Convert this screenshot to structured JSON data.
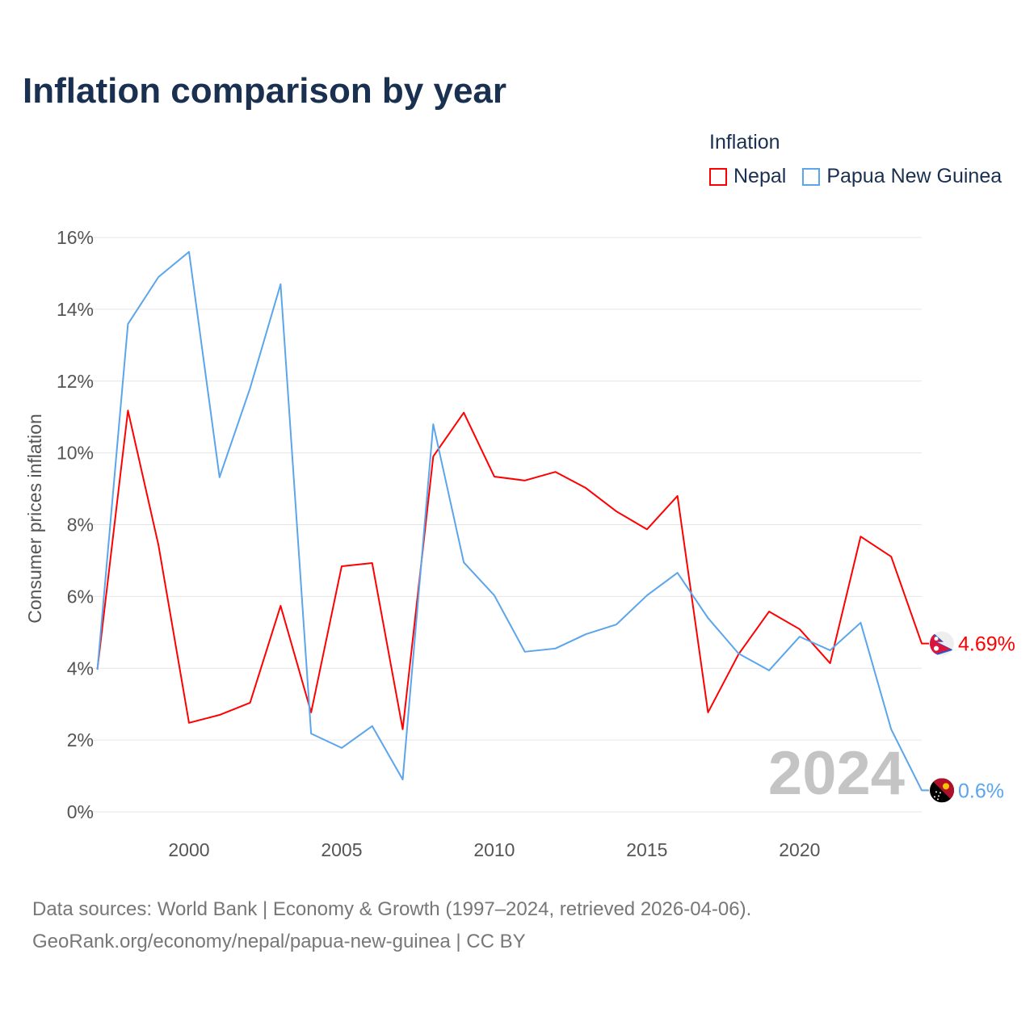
{
  "chart_data": {
    "type": "line",
    "title": "Inflation comparison by year",
    "legend_title": "Inflation",
    "legend_placement": "top-right",
    "ylabel": "Consumer prices inflation",
    "xlabel": "",
    "ylim": [
      0,
      16
    ],
    "xlim": [
      1997,
      2024
    ],
    "y_ticks": [
      0,
      2,
      4,
      6,
      8,
      10,
      12,
      14,
      16
    ],
    "y_tick_labels": [
      "0%",
      "2%",
      "4%",
      "6%",
      "8%",
      "10%",
      "12%",
      "14%",
      "16%"
    ],
    "x_ticks": [
      2000,
      2005,
      2010,
      2015,
      2020
    ],
    "x_tick_labels": [
      "2000",
      "2005",
      "2010",
      "2015",
      "2020"
    ],
    "grid": true,
    "year_watermark": "2024",
    "x": [
      1997,
      1998,
      1999,
      2000,
      2001,
      2002,
      2003,
      2004,
      2005,
      2006,
      2007,
      2008,
      2009,
      2010,
      2011,
      2012,
      2013,
      2014,
      2015,
      2016,
      2017,
      2018,
      2019,
      2020,
      2021,
      2022,
      2023,
      2024
    ],
    "series": [
      {
        "name": "Nepal",
        "color": "#ff0000",
        "end_label": "4.69%",
        "values": [
          3.98,
          11.18,
          7.43,
          2.48,
          2.7,
          3.04,
          5.74,
          2.77,
          6.84,
          6.93,
          2.3,
          9.9,
          11.12,
          9.34,
          9.23,
          9.47,
          9.02,
          8.37,
          7.87,
          8.8,
          2.77,
          4.39,
          5.58,
          5.09,
          4.14,
          7.67,
          7.11,
          4.69
        ]
      },
      {
        "name": "Papua New Guinea",
        "color": "#5aa5ec",
        "end_label": "0.6%",
        "values": [
          3.96,
          13.59,
          14.9,
          15.6,
          9.32,
          11.8,
          14.7,
          2.18,
          1.78,
          2.39,
          0.9,
          10.8,
          6.95,
          6.03,
          4.46,
          4.55,
          4.95,
          5.22,
          6.03,
          6.66,
          5.4,
          4.41,
          3.94,
          4.88,
          4.5,
          5.27,
          2.3,
          0.6
        ]
      }
    ]
  },
  "source": {
    "line1": "Data sources: World Bank | Economy & Growth (1997–2024, retrieved 2026-04-06).",
    "line2": "GeoRank.org/economy/nepal/papua-new-guinea | CC BY"
  }
}
